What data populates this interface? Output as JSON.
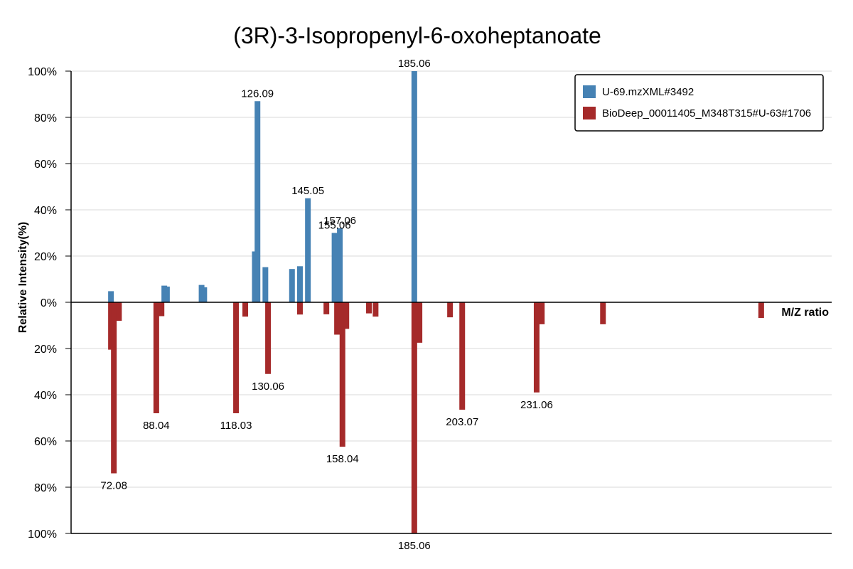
{
  "chart_data": {
    "type": "bar",
    "title": "(3R)-3-Isopropenyl-6-oxoheptanoate",
    "ylabel": "Relative Intensity(%)",
    "xlabel": "M/Z ratio",
    "ylim": [
      -100,
      100
    ],
    "y_ticks": [
      "100%",
      "80%",
      "60%",
      "40%",
      "20%",
      "0%",
      "20%",
      "40%",
      "60%",
      "80%",
      "100%"
    ],
    "xlim": [
      56,
      342
    ],
    "legend_position": "top-right",
    "grid": true,
    "series": [
      {
        "name": "U-69.mzXML#3492",
        "color": "#4682b4",
        "direction": "up",
        "peaks": [
          {
            "mz": 71.0,
            "intensity": 4.8
          },
          {
            "mz": 91.05,
            "intensity": 7.2
          },
          {
            "mz": 92.05,
            "intensity": 6.8
          },
          {
            "mz": 105.07,
            "intensity": 7.5
          },
          {
            "mz": 106.07,
            "intensity": 6.5
          },
          {
            "mz": 125.09,
            "intensity": 22.0
          },
          {
            "mz": 126.09,
            "intensity": 87.0,
            "label": "126.09"
          },
          {
            "mz": 129.06,
            "intensity": 15.2
          },
          {
            "mz": 139.07,
            "intensity": 14.4
          },
          {
            "mz": 142.06,
            "intensity": 15.6
          },
          {
            "mz": 145.05,
            "intensity": 45.0,
            "label": "145.05"
          },
          {
            "mz": 155.06,
            "intensity": 30.0,
            "label": "155.06"
          },
          {
            "mz": 157.06,
            "intensity": 32.0,
            "label": "157.06"
          },
          {
            "mz": 185.06,
            "intensity": 100.0,
            "label": "185.06"
          }
        ]
      },
      {
        "name": "BioDeep_00011405_M348T315#U-63#1706",
        "color": "#a52a2a",
        "direction": "down",
        "peaks": [
          {
            "mz": 71.0,
            "intensity": 20.5
          },
          {
            "mz": 72.08,
            "intensity": 74.0,
            "label": "72.08"
          },
          {
            "mz": 74.0,
            "intensity": 8.0
          },
          {
            "mz": 88.04,
            "intensity": 48.0,
            "label": "88.04"
          },
          {
            "mz": 90.0,
            "intensity": 6.0
          },
          {
            "mz": 118.03,
            "intensity": 48.0,
            "label": "118.03"
          },
          {
            "mz": 121.5,
            "intensity": 6.2
          },
          {
            "mz": 130.06,
            "intensity": 31.0,
            "label": "130.06"
          },
          {
            "mz": 142.06,
            "intensity": 5.3
          },
          {
            "mz": 152.0,
            "intensity": 5.2
          },
          {
            "mz": 156.0,
            "intensity": 14.0
          },
          {
            "mz": 158.04,
            "intensity": 62.5,
            "label": "158.04"
          },
          {
            "mz": 159.5,
            "intensity": 11.5
          },
          {
            "mz": 168.0,
            "intensity": 4.8
          },
          {
            "mz": 170.5,
            "intensity": 6.2
          },
          {
            "mz": 185.06,
            "intensity": 100.0,
            "label": "185.06"
          },
          {
            "mz": 187.0,
            "intensity": 17.5
          },
          {
            "mz": 198.5,
            "intensity": 6.5
          },
          {
            "mz": 203.07,
            "intensity": 46.5,
            "label": "203.07"
          },
          {
            "mz": 231.06,
            "intensity": 39.0,
            "label": "231.06"
          },
          {
            "mz": 233.0,
            "intensity": 9.5
          },
          {
            "mz": 256.0,
            "intensity": 9.5
          },
          {
            "mz": 315.5,
            "intensity": 6.8
          }
        ]
      }
    ]
  }
}
